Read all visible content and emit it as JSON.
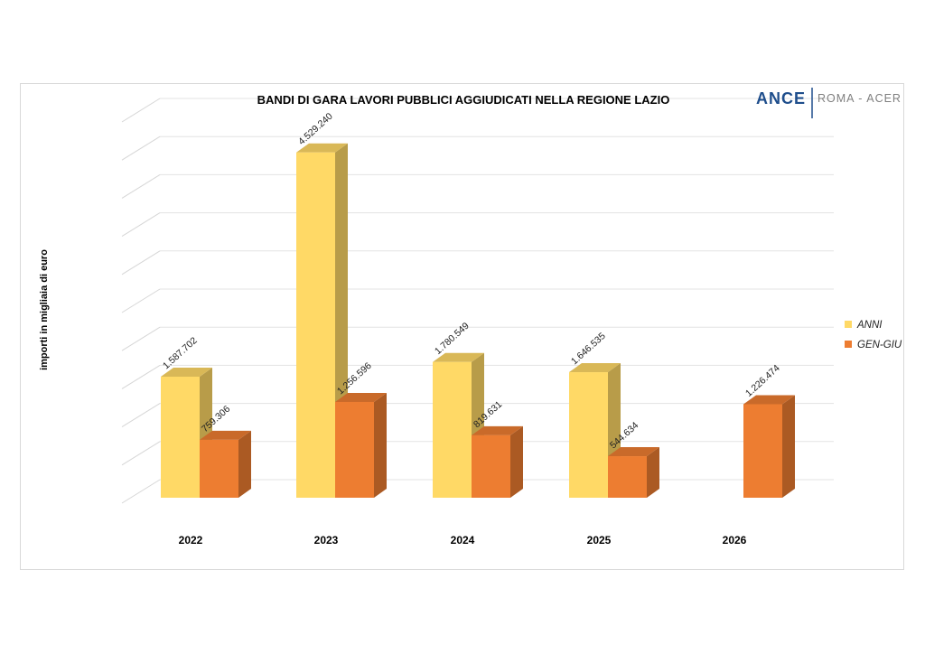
{
  "logo": {
    "main": "ANCE",
    "sub": "ROMA - ACER",
    "main_color": "#1f4e8c",
    "sub_color": "#7f7f7f"
  },
  "chart_data": {
    "type": "bar",
    "title": "BANDI DI GARA LAVORI PUBBLICI AGGIUDICATI NELLA REGIONE LAZIO",
    "xlabel": "",
    "ylabel": "importi in migliaia di euro",
    "categories": [
      "2022",
      "2023",
      "2024",
      "2025",
      "2026"
    ],
    "series": [
      {
        "name": "ANNI",
        "color": "#ffd966",
        "values": [
          1587702,
          4529240,
          1780549,
          1646535,
          null
        ],
        "labels": [
          "1.587.702",
          "4.529.240",
          "1.780.549",
          "1.646.535",
          ""
        ]
      },
      {
        "name": "GEN-GIU",
        "color": "#ed7d31",
        "values": [
          759306,
          1256596,
          819631,
          544634,
          1226474
        ],
        "labels": [
          "759.306",
          "1.256.596",
          "819.631",
          "544.634",
          "1.226.474"
        ]
      }
    ],
    "ylim": [
      0,
      5000000
    ],
    "grid": true,
    "legend_position": "right"
  }
}
